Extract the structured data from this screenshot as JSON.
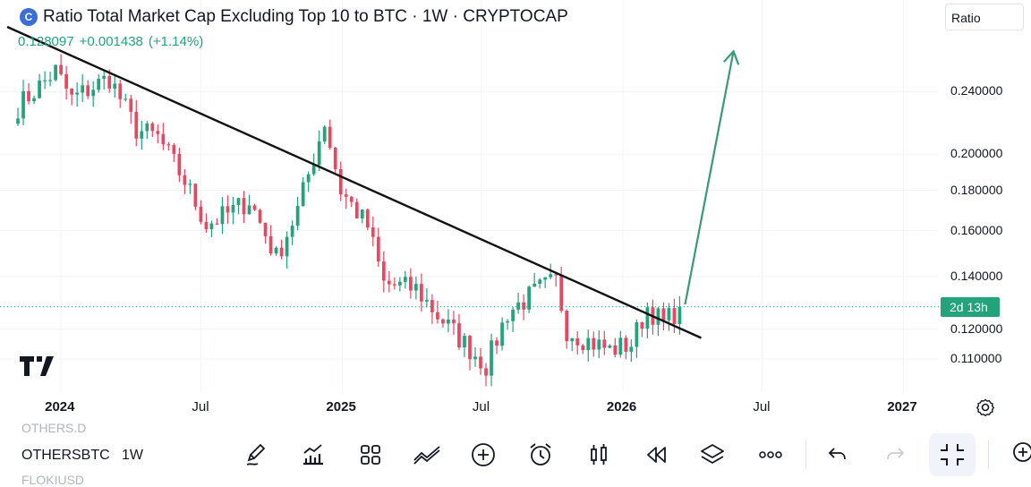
{
  "header": {
    "logo_letter": "C",
    "title": "Ratio Total Market Cap Excluding Top 10 to BTC · 1W · CRYPTOCAP",
    "price": "0.128097",
    "change": "+0.001438",
    "change_pct": "(+1.14%)",
    "scale_button": "Ratio"
  },
  "timer_label": "2d 13h",
  "colors": {
    "up": "#22a37a",
    "down": "#e8485f",
    "trendline": "#111111",
    "arrow": "#3a9a76",
    "price_line": "#22a37a"
  },
  "chart_data": {
    "type": "candlestick",
    "title": "Ratio Total Market Cap Excluding Top 10 to BTC · 1W · CRYPTOCAP",
    "interval": "1W",
    "scale": "log",
    "ylim": [
      0.102,
      0.29
    ],
    "y_ticks": [
      {
        "value": 0.24,
        "label": "0.240000"
      },
      {
        "value": 0.2,
        "label": "0.200000"
      },
      {
        "value": 0.18,
        "label": "0.180000"
      },
      {
        "value": 0.16,
        "label": "0.160000"
      },
      {
        "value": 0.14,
        "label": "0.140000"
      },
      {
        "value": 0.12,
        "label": "0.120000"
      },
      {
        "value": 0.11,
        "label": "0.110000"
      }
    ],
    "x_ticks": [
      {
        "date": "2024-01-01",
        "label": "2024",
        "bold": true
      },
      {
        "date": "2024-07-01",
        "label": "Jul",
        "bold": false
      },
      {
        "date": "2025-01-01",
        "label": "2025",
        "bold": true
      },
      {
        "date": "2025-07-01",
        "label": "Jul",
        "bold": false
      },
      {
        "date": "2026-01-01",
        "label": "2026",
        "bold": true
      },
      {
        "date": "2026-07-01",
        "label": "Jul",
        "bold": false
      },
      {
        "date": "2027-01-01",
        "label": "2027",
        "bold": true
      }
    ],
    "last_value": 0.128097,
    "anchors": [
      {
        "date": "2023-11-06",
        "close": 0.23
      },
      {
        "date": "2023-12-25",
        "close": 0.255
      },
      {
        "date": "2024-01-15",
        "close": 0.235
      },
      {
        "date": "2024-03-04",
        "close": 0.25
      },
      {
        "date": "2024-04-08",
        "close": 0.215
      },
      {
        "date": "2024-05-06",
        "close": 0.21
      },
      {
        "date": "2024-06-10",
        "close": 0.185
      },
      {
        "date": "2024-07-08",
        "close": 0.163
      },
      {
        "date": "2024-08-05",
        "close": 0.168
      },
      {
        "date": "2024-09-02",
        "close": 0.175
      },
      {
        "date": "2024-10-07",
        "close": 0.148
      },
      {
        "date": "2024-11-04",
        "close": 0.17
      },
      {
        "date": "2024-12-09",
        "close": 0.22
      },
      {
        "date": "2024-12-30",
        "close": 0.18
      },
      {
        "date": "2025-02-03",
        "close": 0.162
      },
      {
        "date": "2025-02-24",
        "close": 0.137
      },
      {
        "date": "2025-04-07",
        "close": 0.135
      },
      {
        "date": "2025-05-05",
        "close": 0.125
      },
      {
        "date": "2025-06-02",
        "close": 0.117
      },
      {
        "date": "2025-07-07",
        "close": 0.108
      },
      {
        "date": "2025-08-04",
        "close": 0.126
      },
      {
        "date": "2025-09-15",
        "close": 0.135
      },
      {
        "date": "2025-10-06",
        "close": 0.138
      },
      {
        "date": "2025-10-20",
        "close": 0.12
      },
      {
        "date": "2025-11-17",
        "close": 0.116
      },
      {
        "date": "2025-12-15",
        "close": 0.113
      },
      {
        "date": "2026-01-12",
        "close": 0.115
      },
      {
        "date": "2026-02-02",
        "close": 0.128
      },
      {
        "date": "2026-02-23",
        "close": 0.122
      },
      {
        "date": "2026-03-16",
        "close": 0.128097
      }
    ],
    "trendline": {
      "from": {
        "date": "2023-10-23",
        "value": 0.29
      },
      "to": {
        "date": "2026-04-13",
        "value": 0.117
      }
    },
    "arrow": {
      "from": {
        "date": "2026-03-23",
        "value": 0.129
      },
      "to": {
        "date": "2026-05-25",
        "value": 0.27
      }
    }
  },
  "toolbar": {
    "ghost_top": "OTHERS.D",
    "symbol": "OTHERSBTC",
    "interval": "1W",
    "ghost_bottom": "FLOKIUSD"
  },
  "icons": [
    "pencil-icon",
    "indicators-icon",
    "grid-icon",
    "compare-icon",
    "add-icon",
    "alarm-icon",
    "candles-icon",
    "replay-icon",
    "layers-icon",
    "more-icon",
    "undo-icon",
    "redo-icon",
    "fullscreen-exit-icon",
    "add-alert-icon",
    "settings-icon",
    "tradingview-logo"
  ]
}
